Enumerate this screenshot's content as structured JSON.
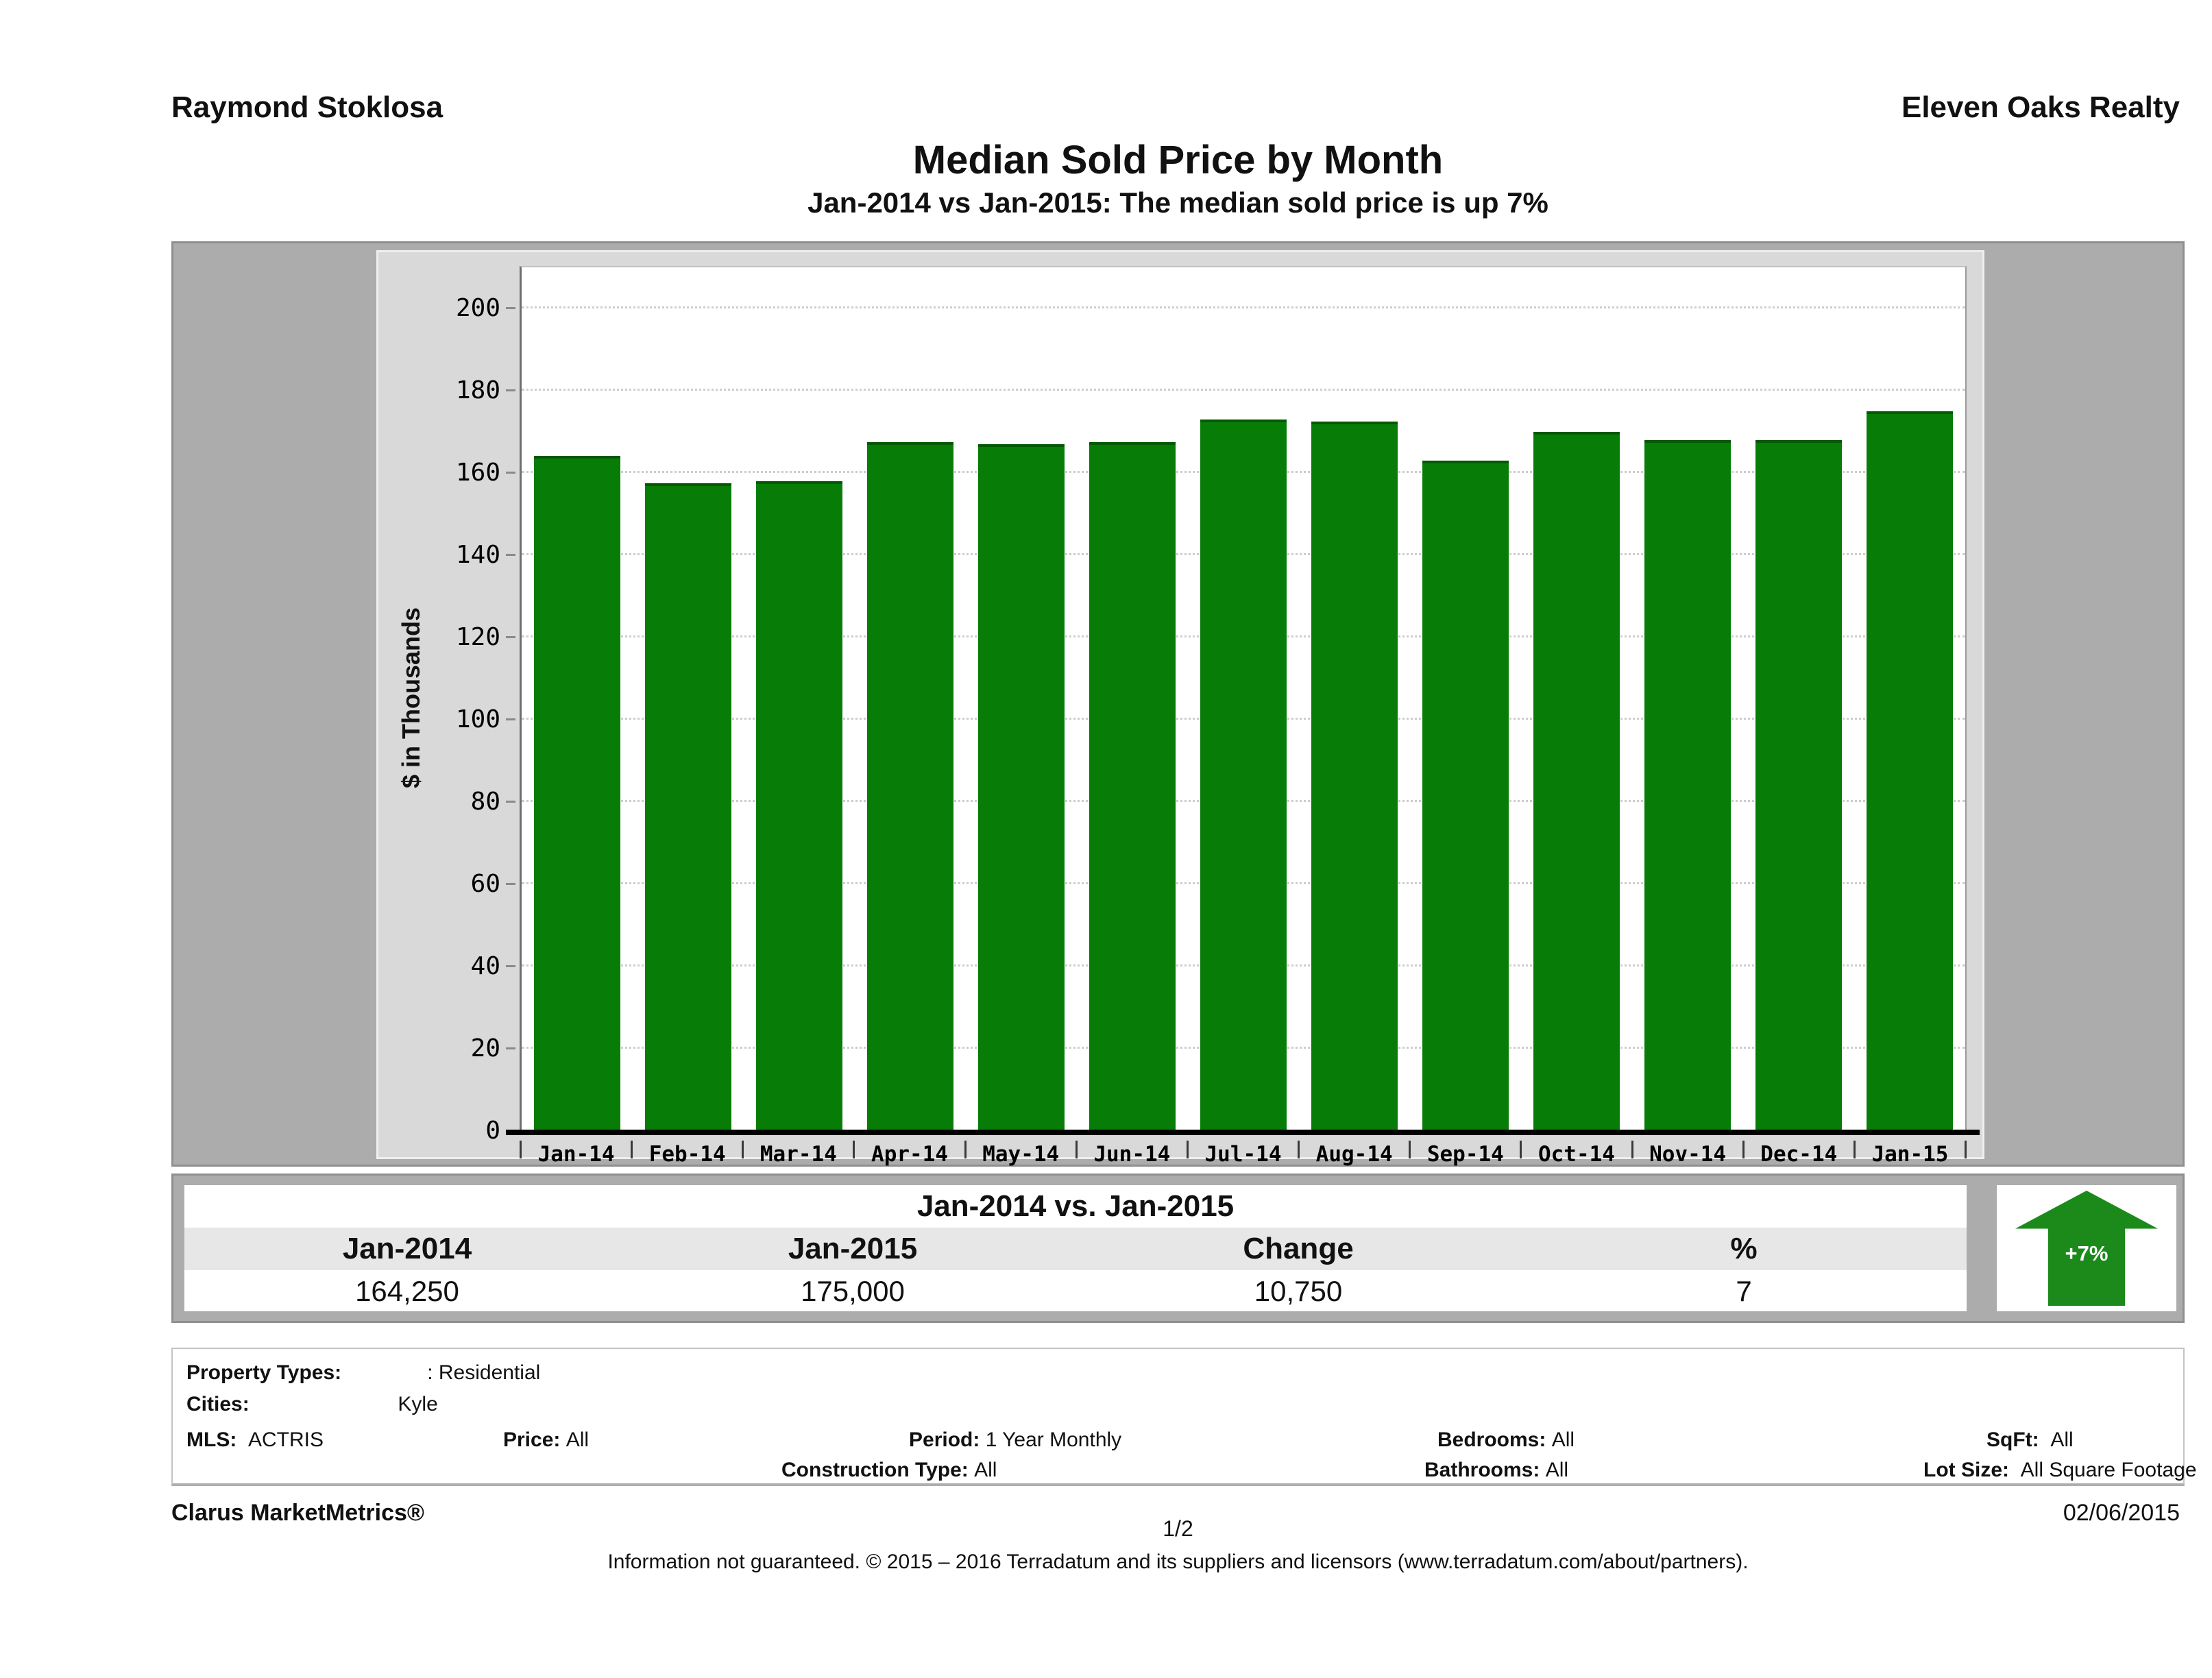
{
  "header": {
    "agent": "Raymond Stoklosa",
    "company": "Eleven Oaks Realty"
  },
  "title": "Median Sold Price by Month",
  "subtitle": "Jan-2014 vs Jan-2015: The median sold price is up 7%",
  "chart_data": {
    "type": "bar",
    "title": "Median Sold Price by Month",
    "categories": [
      "Jan-14",
      "Feb-14",
      "Mar-14",
      "Apr-14",
      "May-14",
      "Jun-14",
      "Jul-14",
      "Aug-14",
      "Sep-14",
      "Oct-14",
      "Nov-14",
      "Dec-14",
      "Jan-15"
    ],
    "values": [
      164.25,
      157.5,
      158,
      167.5,
      167,
      167.5,
      173,
      172.5,
      163,
      170,
      168,
      168,
      175
    ],
    "xlabel": "",
    "ylabel": "$ in Thousands",
    "ylim": [
      0,
      210
    ],
    "ytick_step": 20,
    "ytick_max_label": 200,
    "grid": true,
    "legend": "none",
    "bar_color": "#077d07"
  },
  "comparison": {
    "title": "Jan-2014 vs. Jan-2015",
    "columns": [
      "Jan-2014",
      "Jan-2015",
      "Change",
      "%"
    ],
    "values": [
      "164,250",
      "175,000",
      "10,750",
      "7"
    ],
    "badge": "+7%",
    "badge_color": "#1b8a1b"
  },
  "filters": {
    "property_types_label": "Property Types:",
    "property_types": ": Residential",
    "cities_label": "Cities:",
    "cities": "Kyle",
    "mls_label": "MLS:",
    "mls": "ACTRIS",
    "price_label": "Price:",
    "price": "All",
    "period_label": "Period:",
    "period": "1 Year Monthly",
    "bedrooms_label": "Bedrooms:",
    "bedrooms": "All",
    "sqft_label": "SqFt:",
    "sqft": "All",
    "construction_label": "Construction Type:",
    "construction": "All",
    "bathrooms_label": "Bathrooms:",
    "bathrooms": "All",
    "lot_label": "Lot Size:",
    "lot": "All Square Footage"
  },
  "footer": {
    "brand": "Clarus MarketMetrics®",
    "page": "1/2",
    "date": "02/06/2015",
    "disclaimer": "Information not guaranteed. © 2015 – 2016 Terradatum and its suppliers and licensors (www.terradatum.com/about/partners)."
  }
}
